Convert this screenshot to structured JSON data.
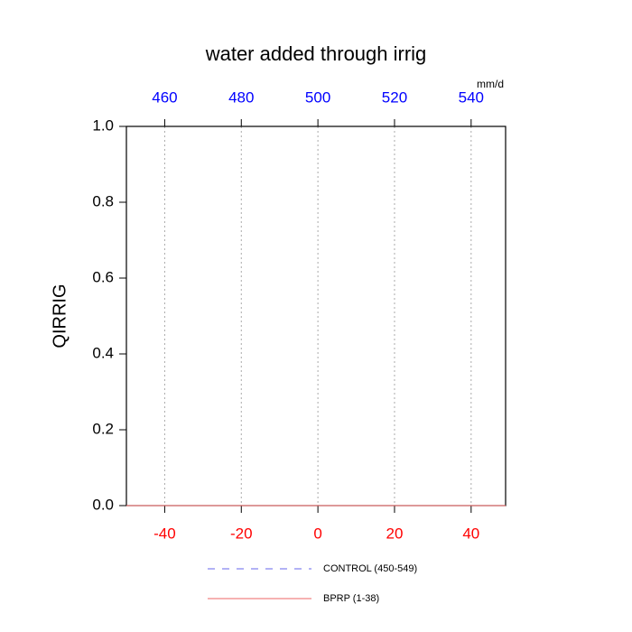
{
  "chart_data": {
    "type": "line",
    "title": "water added through irrig",
    "ylabel": "QIRRIG",
    "x2label": "mm/d",
    "x": [
      -50,
      49
    ],
    "series": [
      {
        "name": "CONTROL (450-549)",
        "color": "#6666ee",
        "dash": true,
        "values": [
          0,
          0
        ]
      },
      {
        "name": "BPRP (1-38)",
        "color": "#ee6666",
        "dash": false,
        "values": [
          0,
          0
        ]
      }
    ],
    "xlim": [
      -50,
      49
    ],
    "xticks": [
      -40,
      -20,
      0,
      20,
      40
    ],
    "xtick_color": "#ff0000",
    "x2lim": [
      450,
      549
    ],
    "x2ticks": [
      460,
      480,
      500,
      520,
      540
    ],
    "x2tick_color": "#0000ff",
    "ylim": [
      0,
      1
    ],
    "yticks": [
      {
        "value": 0,
        "label": "0.0"
      },
      {
        "value": 0.2,
        "label": "0.2"
      },
      {
        "value": 0.4,
        "label": "0.4"
      },
      {
        "value": 0.6,
        "label": "0.6"
      },
      {
        "value": 0.8,
        "label": "0.8"
      },
      {
        "value": 1,
        "label": "1.0"
      }
    ],
    "grid": true
  }
}
